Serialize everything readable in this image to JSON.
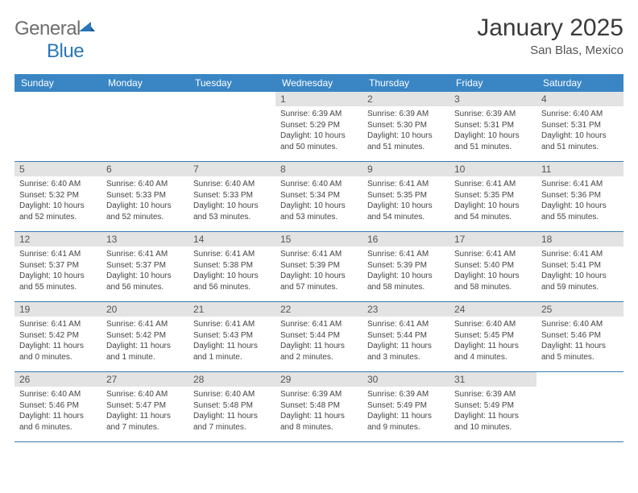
{
  "logo": {
    "text_gray": "General",
    "text_blue": "Blue",
    "icon_color": "#2a77b9"
  },
  "title": "January 2025",
  "location": "San Blas, Mexico",
  "colors": {
    "header_bar": "#3a86c5",
    "header_text": "#ffffff",
    "day_number_bg": "#e3e3e3",
    "row_border": "#3a7ab0",
    "logo_gray": "#6e6e6e",
    "logo_blue": "#2a77b9"
  },
  "day_names": [
    "Sunday",
    "Monday",
    "Tuesday",
    "Wednesday",
    "Thursday",
    "Friday",
    "Saturday"
  ],
  "weeks": [
    [
      {
        "num": "",
        "sunrise": "",
        "sunset": "",
        "daylight": ""
      },
      {
        "num": "",
        "sunrise": "",
        "sunset": "",
        "daylight": ""
      },
      {
        "num": "",
        "sunrise": "",
        "sunset": "",
        "daylight": ""
      },
      {
        "num": "1",
        "sunrise": "Sunrise: 6:39 AM",
        "sunset": "Sunset: 5:29 PM",
        "daylight": "Daylight: 10 hours and 50 minutes."
      },
      {
        "num": "2",
        "sunrise": "Sunrise: 6:39 AM",
        "sunset": "Sunset: 5:30 PM",
        "daylight": "Daylight: 10 hours and 51 minutes."
      },
      {
        "num": "3",
        "sunrise": "Sunrise: 6:39 AM",
        "sunset": "Sunset: 5:31 PM",
        "daylight": "Daylight: 10 hours and 51 minutes."
      },
      {
        "num": "4",
        "sunrise": "Sunrise: 6:40 AM",
        "sunset": "Sunset: 5:31 PM",
        "daylight": "Daylight: 10 hours and 51 minutes."
      }
    ],
    [
      {
        "num": "5",
        "sunrise": "Sunrise: 6:40 AM",
        "sunset": "Sunset: 5:32 PM",
        "daylight": "Daylight: 10 hours and 52 minutes."
      },
      {
        "num": "6",
        "sunrise": "Sunrise: 6:40 AM",
        "sunset": "Sunset: 5:33 PM",
        "daylight": "Daylight: 10 hours and 52 minutes."
      },
      {
        "num": "7",
        "sunrise": "Sunrise: 6:40 AM",
        "sunset": "Sunset: 5:33 PM",
        "daylight": "Daylight: 10 hours and 53 minutes."
      },
      {
        "num": "8",
        "sunrise": "Sunrise: 6:40 AM",
        "sunset": "Sunset: 5:34 PM",
        "daylight": "Daylight: 10 hours and 53 minutes."
      },
      {
        "num": "9",
        "sunrise": "Sunrise: 6:41 AM",
        "sunset": "Sunset: 5:35 PM",
        "daylight": "Daylight: 10 hours and 54 minutes."
      },
      {
        "num": "10",
        "sunrise": "Sunrise: 6:41 AM",
        "sunset": "Sunset: 5:35 PM",
        "daylight": "Daylight: 10 hours and 54 minutes."
      },
      {
        "num": "11",
        "sunrise": "Sunrise: 6:41 AM",
        "sunset": "Sunset: 5:36 PM",
        "daylight": "Daylight: 10 hours and 55 minutes."
      }
    ],
    [
      {
        "num": "12",
        "sunrise": "Sunrise: 6:41 AM",
        "sunset": "Sunset: 5:37 PM",
        "daylight": "Daylight: 10 hours and 55 minutes."
      },
      {
        "num": "13",
        "sunrise": "Sunrise: 6:41 AM",
        "sunset": "Sunset: 5:37 PM",
        "daylight": "Daylight: 10 hours and 56 minutes."
      },
      {
        "num": "14",
        "sunrise": "Sunrise: 6:41 AM",
        "sunset": "Sunset: 5:38 PM",
        "daylight": "Daylight: 10 hours and 56 minutes."
      },
      {
        "num": "15",
        "sunrise": "Sunrise: 6:41 AM",
        "sunset": "Sunset: 5:39 PM",
        "daylight": "Daylight: 10 hours and 57 minutes."
      },
      {
        "num": "16",
        "sunrise": "Sunrise: 6:41 AM",
        "sunset": "Sunset: 5:39 PM",
        "daylight": "Daylight: 10 hours and 58 minutes."
      },
      {
        "num": "17",
        "sunrise": "Sunrise: 6:41 AM",
        "sunset": "Sunset: 5:40 PM",
        "daylight": "Daylight: 10 hours and 58 minutes."
      },
      {
        "num": "18",
        "sunrise": "Sunrise: 6:41 AM",
        "sunset": "Sunset: 5:41 PM",
        "daylight": "Daylight: 10 hours and 59 minutes."
      }
    ],
    [
      {
        "num": "19",
        "sunrise": "Sunrise: 6:41 AM",
        "sunset": "Sunset: 5:42 PM",
        "daylight": "Daylight: 11 hours and 0 minutes."
      },
      {
        "num": "20",
        "sunrise": "Sunrise: 6:41 AM",
        "sunset": "Sunset: 5:42 PM",
        "daylight": "Daylight: 11 hours and 1 minute."
      },
      {
        "num": "21",
        "sunrise": "Sunrise: 6:41 AM",
        "sunset": "Sunset: 5:43 PM",
        "daylight": "Daylight: 11 hours and 1 minute."
      },
      {
        "num": "22",
        "sunrise": "Sunrise: 6:41 AM",
        "sunset": "Sunset: 5:44 PM",
        "daylight": "Daylight: 11 hours and 2 minutes."
      },
      {
        "num": "23",
        "sunrise": "Sunrise: 6:41 AM",
        "sunset": "Sunset: 5:44 PM",
        "daylight": "Daylight: 11 hours and 3 minutes."
      },
      {
        "num": "24",
        "sunrise": "Sunrise: 6:40 AM",
        "sunset": "Sunset: 5:45 PM",
        "daylight": "Daylight: 11 hours and 4 minutes."
      },
      {
        "num": "25",
        "sunrise": "Sunrise: 6:40 AM",
        "sunset": "Sunset: 5:46 PM",
        "daylight": "Daylight: 11 hours and 5 minutes."
      }
    ],
    [
      {
        "num": "26",
        "sunrise": "Sunrise: 6:40 AM",
        "sunset": "Sunset: 5:46 PM",
        "daylight": "Daylight: 11 hours and 6 minutes."
      },
      {
        "num": "27",
        "sunrise": "Sunrise: 6:40 AM",
        "sunset": "Sunset: 5:47 PM",
        "daylight": "Daylight: 11 hours and 7 minutes."
      },
      {
        "num": "28",
        "sunrise": "Sunrise: 6:40 AM",
        "sunset": "Sunset: 5:48 PM",
        "daylight": "Daylight: 11 hours and 7 minutes."
      },
      {
        "num": "29",
        "sunrise": "Sunrise: 6:39 AM",
        "sunset": "Sunset: 5:48 PM",
        "daylight": "Daylight: 11 hours and 8 minutes."
      },
      {
        "num": "30",
        "sunrise": "Sunrise: 6:39 AM",
        "sunset": "Sunset: 5:49 PM",
        "daylight": "Daylight: 11 hours and 9 minutes."
      },
      {
        "num": "31",
        "sunrise": "Sunrise: 6:39 AM",
        "sunset": "Sunset: 5:49 PM",
        "daylight": "Daylight: 11 hours and 10 minutes."
      },
      {
        "num": "",
        "sunrise": "",
        "sunset": "",
        "daylight": ""
      }
    ]
  ]
}
